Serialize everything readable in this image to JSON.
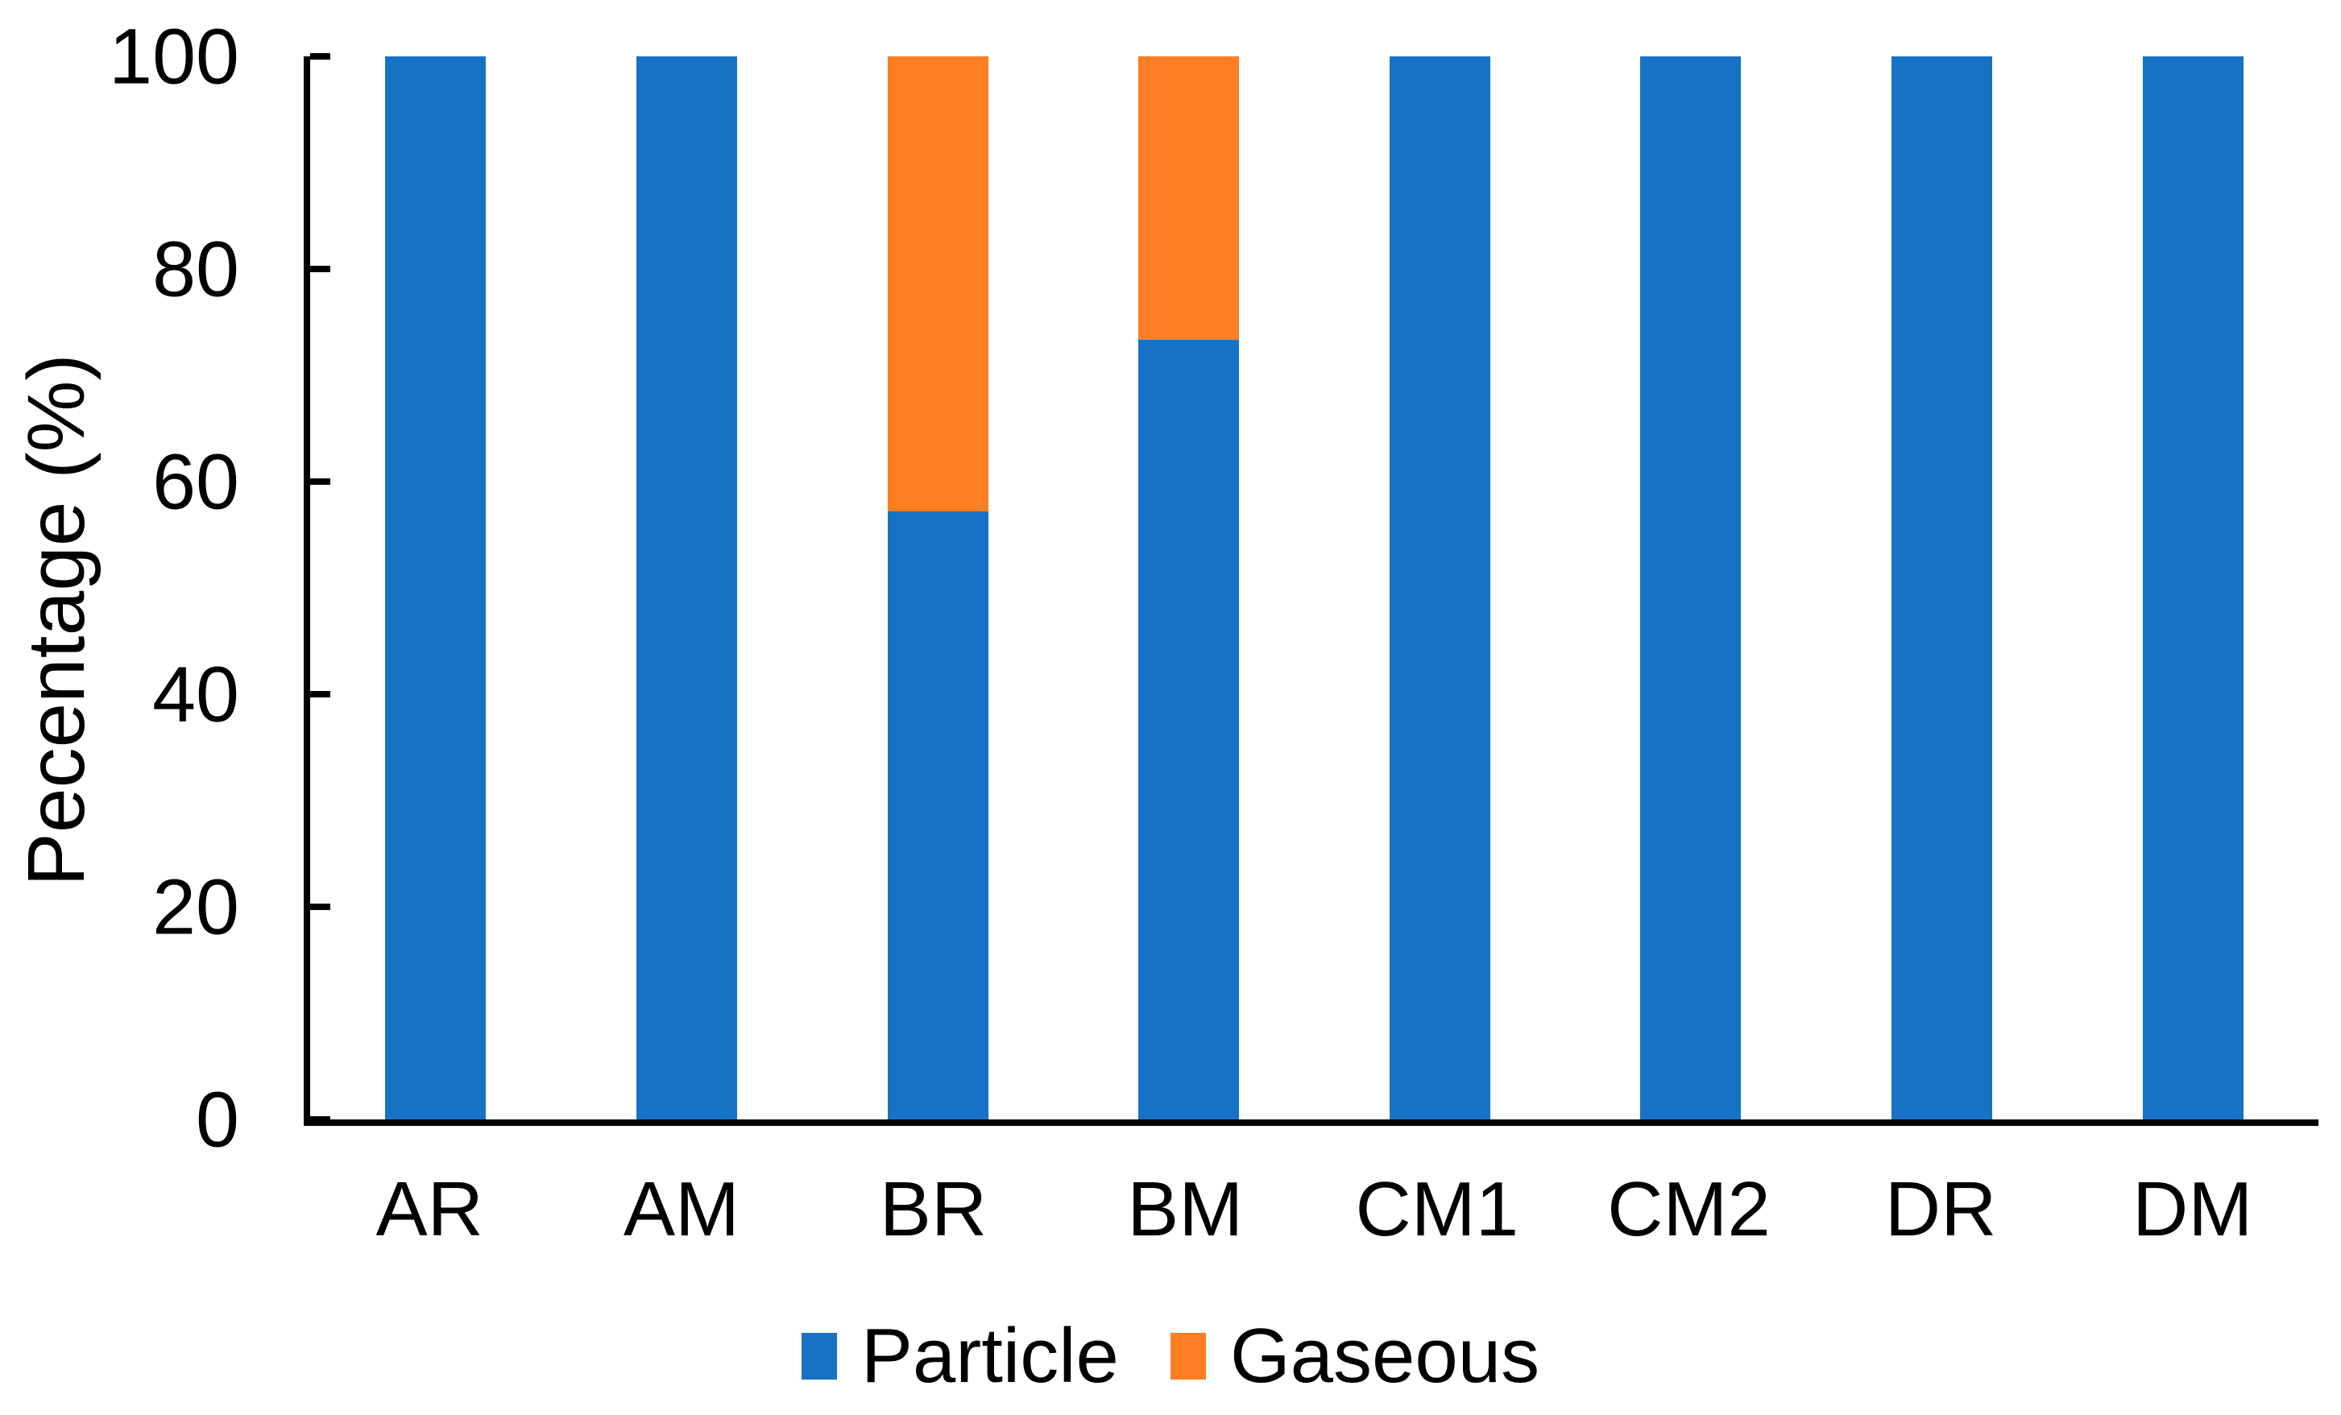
{
  "figure": {
    "background": "#FFFFFF",
    "axis_color": "#000000",
    "text_color": "#000000"
  },
  "chart_data": {
    "type": "bar",
    "variant": "stacked-column",
    "title": "",
    "xlabel": "",
    "ylabel": "Pecentage (%)",
    "categories": [
      "AR",
      "AM",
      "BR",
      "BM",
      "CM1",
      "CM2",
      "DR",
      "DM"
    ],
    "series": [
      {
        "name": "Particle",
        "color": "#1772C6",
        "values": [
          100,
          100,
          57.2,
          73.3,
          100,
          100,
          100,
          100
        ]
      },
      {
        "name": "Gaseous",
        "color": "#FD7E23",
        "values": [
          0,
          0,
          42.8,
          26.7,
          0,
          0,
          0,
          0
        ]
      }
    ],
    "ylim": [
      0,
      100
    ],
    "yticks": [
      0,
      20,
      40,
      60,
      80,
      100
    ],
    "grid": false,
    "legend_position": "bottom",
    "tick_style": "inside"
  }
}
